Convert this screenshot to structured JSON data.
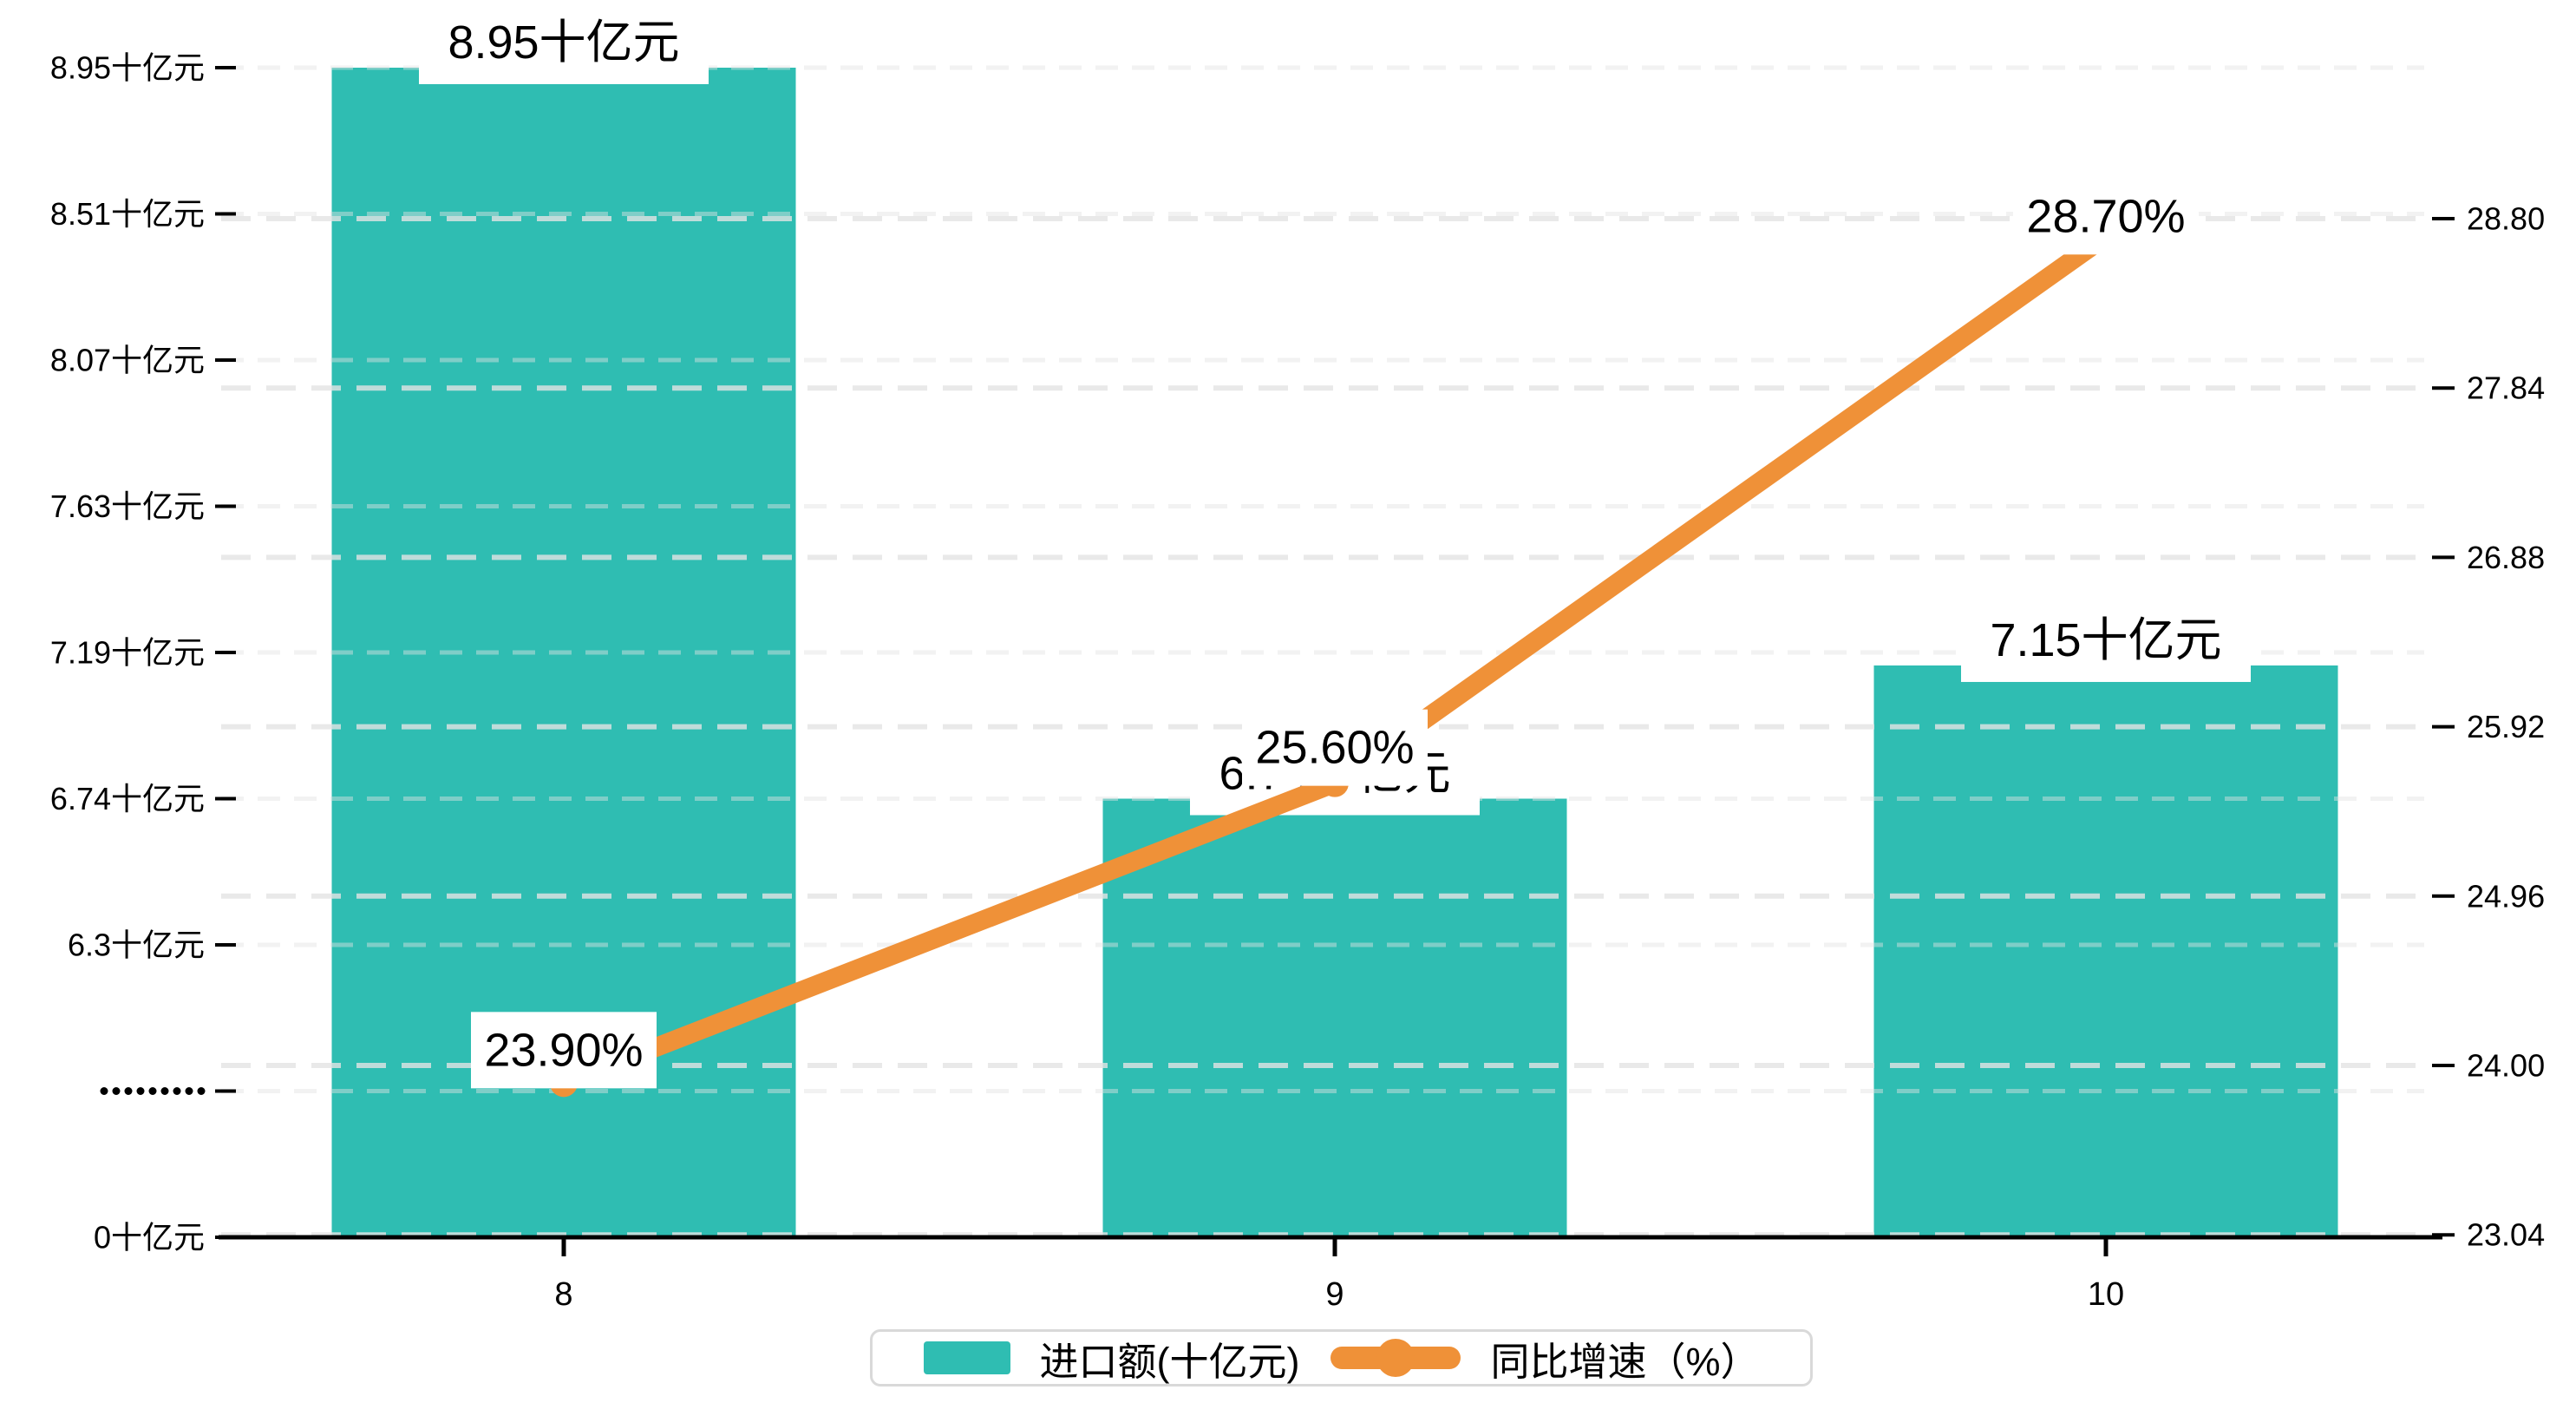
{
  "chart_data": {
    "type": "bar",
    "subtype": "dual-axis bar + line",
    "categories": [
      "8",
      "9",
      "10"
    ],
    "series": [
      {
        "name": "进口额(十亿元)",
        "type": "bar",
        "axis": "left",
        "values": [
          8.95,
          6.74,
          7.15
        ],
        "point_labels": [
          "8.95十亿元",
          "6.74十亿元",
          "7.15十亿元"
        ],
        "color": "#2fbdb2"
      },
      {
        "name": "同比增速（%）",
        "type": "line",
        "axis": "right",
        "values": [
          23.9,
          25.6,
          28.7
        ],
        "point_labels": [
          "23.90%",
          "25.60%",
          "28.70%"
        ],
        "color": "#ef9138"
      }
    ],
    "left_axis": {
      "tick_labels_top_to_bottom": [
        "8.95十亿元",
        "8.51十亿元",
        "8.07十亿元",
        "7.63十亿元",
        "7.19十亿元",
        "6.74十亿元",
        "6.3十亿元",
        "·········",
        "0十亿元"
      ],
      "tick_values_bottom_to_top": [
        0,
        6.3,
        6.74,
        7.19,
        7.63,
        8.07,
        8.51,
        8.95
      ],
      "has_axis_break": true,
      "break_marker": "·········"
    },
    "right_axis": {
      "tick_labels_top_to_bottom": [
        "28.80",
        "27.84",
        "26.88",
        "25.92",
        "24.96",
        "24.00",
        "23.04"
      ],
      "min": 23.04,
      "max": 28.8,
      "step": 0.96
    },
    "x_axis": {
      "tick_labels": [
        "8",
        "9",
        "10"
      ]
    },
    "grid": "dashed horizontal lines for both axes",
    "legend_position": "bottom-center"
  },
  "legend": {
    "items": [
      {
        "label": "进口额(十亿元)",
        "marker": "bar-swatch",
        "color": "#2fbdb2"
      },
      {
        "label": "同比增速（%）",
        "marker": "line-with-dot",
        "color": "#ef9138"
      }
    ]
  },
  "colors": {
    "bar": "#2fbdb2",
    "line": "#ef9138",
    "grid": "#e3e3e3",
    "axis": "#000000",
    "text": "#000000",
    "label_background": "#ffffff",
    "legend_border": "#d9d9d9"
  }
}
